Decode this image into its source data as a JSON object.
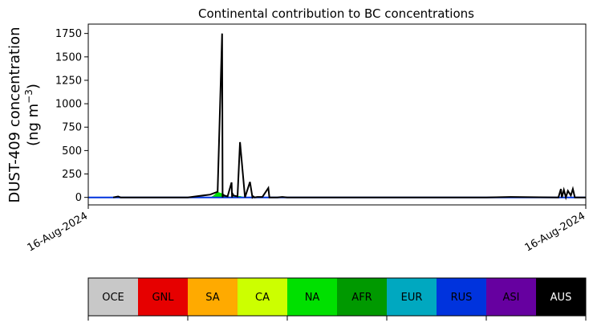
{
  "chart_data": {
    "type": "line",
    "title": "Continental contribution to BC concentrations",
    "ylabel_line1": "DUST-409 concentration",
    "ylabel_line2": "(ng m",
    "ylabel_unit_sup": "−3",
    "ylabel_unit_close": ")",
    "xlabel": "",
    "ylim": [
      -80,
      1850
    ],
    "yticks": [
      0,
      250,
      500,
      750,
      1000,
      1250,
      1500,
      1750
    ],
    "ytick_labels": [
      "0",
      "250",
      "500",
      "750",
      "1000",
      "1250",
      "1500",
      "1750"
    ],
    "xlim": [
      0,
      100
    ],
    "xtick_positions": [
      0,
      100
    ],
    "xtick_labels": [
      "16-Aug-2024",
      "16-Aug-2024"
    ],
    "grid": false,
    "total_series": {
      "color": "#000000",
      "x": [
        5,
        6,
        6.5,
        7,
        20,
        24.5,
        26,
        26.9,
        27,
        27.1,
        27.3,
        28,
        28.8,
        28.9,
        29,
        29.2,
        30,
        30.5,
        31.5,
        32.5,
        33,
        33.2,
        33.4,
        34,
        35,
        36.2,
        36.4,
        38,
        39,
        40,
        42,
        50,
        80,
        85,
        94.5,
        95,
        95.2,
        95.6,
        96,
        96.4,
        97,
        97.4,
        97.8,
        98.4,
        100
      ],
      "y": [
        0,
        10,
        0,
        0,
        0,
        30,
        60,
        1750,
        0,
        30,
        20,
        10,
        160,
        0,
        40,
        20,
        10,
        590,
        0,
        165,
        0,
        10,
        0,
        5,
        5,
        100,
        0,
        0,
        5,
        0,
        0,
        0,
        0,
        5,
        0,
        90,
        0,
        80,
        0,
        70,
        20,
        90,
        0,
        0,
        0
      ]
    },
    "contribution_series": [
      {
        "color": "#00e000",
        "x": [
          24.5,
          25.2,
          26,
          27,
          27.8,
          28.5,
          29.5,
          30.5,
          31.5
        ],
        "y": [
          0,
          20,
          60,
          40,
          15,
          5,
          10,
          15,
          0
        ]
      },
      {
        "color": "#ffaa00",
        "x": [
          27.8,
          28.5,
          29.2,
          30
        ],
        "y": [
          0,
          8,
          5,
          0
        ]
      },
      {
        "color": "#0033dd",
        "x": [
          0,
          100
        ],
        "y": [
          0,
          0
        ]
      }
    ],
    "regions": [
      {
        "label": "OCE",
        "color": "#c8c8c8",
        "text_color": "#000000"
      },
      {
        "label": "GNL",
        "color": "#e60000",
        "text_color": "#000000"
      },
      {
        "label": "SA",
        "color": "#ffaa00",
        "text_color": "#000000"
      },
      {
        "label": "CA",
        "color": "#ccff00",
        "text_color": "#000000"
      },
      {
        "label": "NA",
        "color": "#00e000",
        "text_color": "#000000"
      },
      {
        "label": "AFR",
        "color": "#009900",
        "text_color": "#000000"
      },
      {
        "label": "EUR",
        "color": "#00a8c0",
        "text_color": "#000000"
      },
      {
        "label": "RUS",
        "color": "#0033dd",
        "text_color": "#000000"
      },
      {
        "label": "ASI",
        "color": "#6600a0",
        "text_color": "#000000"
      },
      {
        "label": "AUS",
        "color": "#000000",
        "text_color": "#ffffff"
      }
    ]
  }
}
